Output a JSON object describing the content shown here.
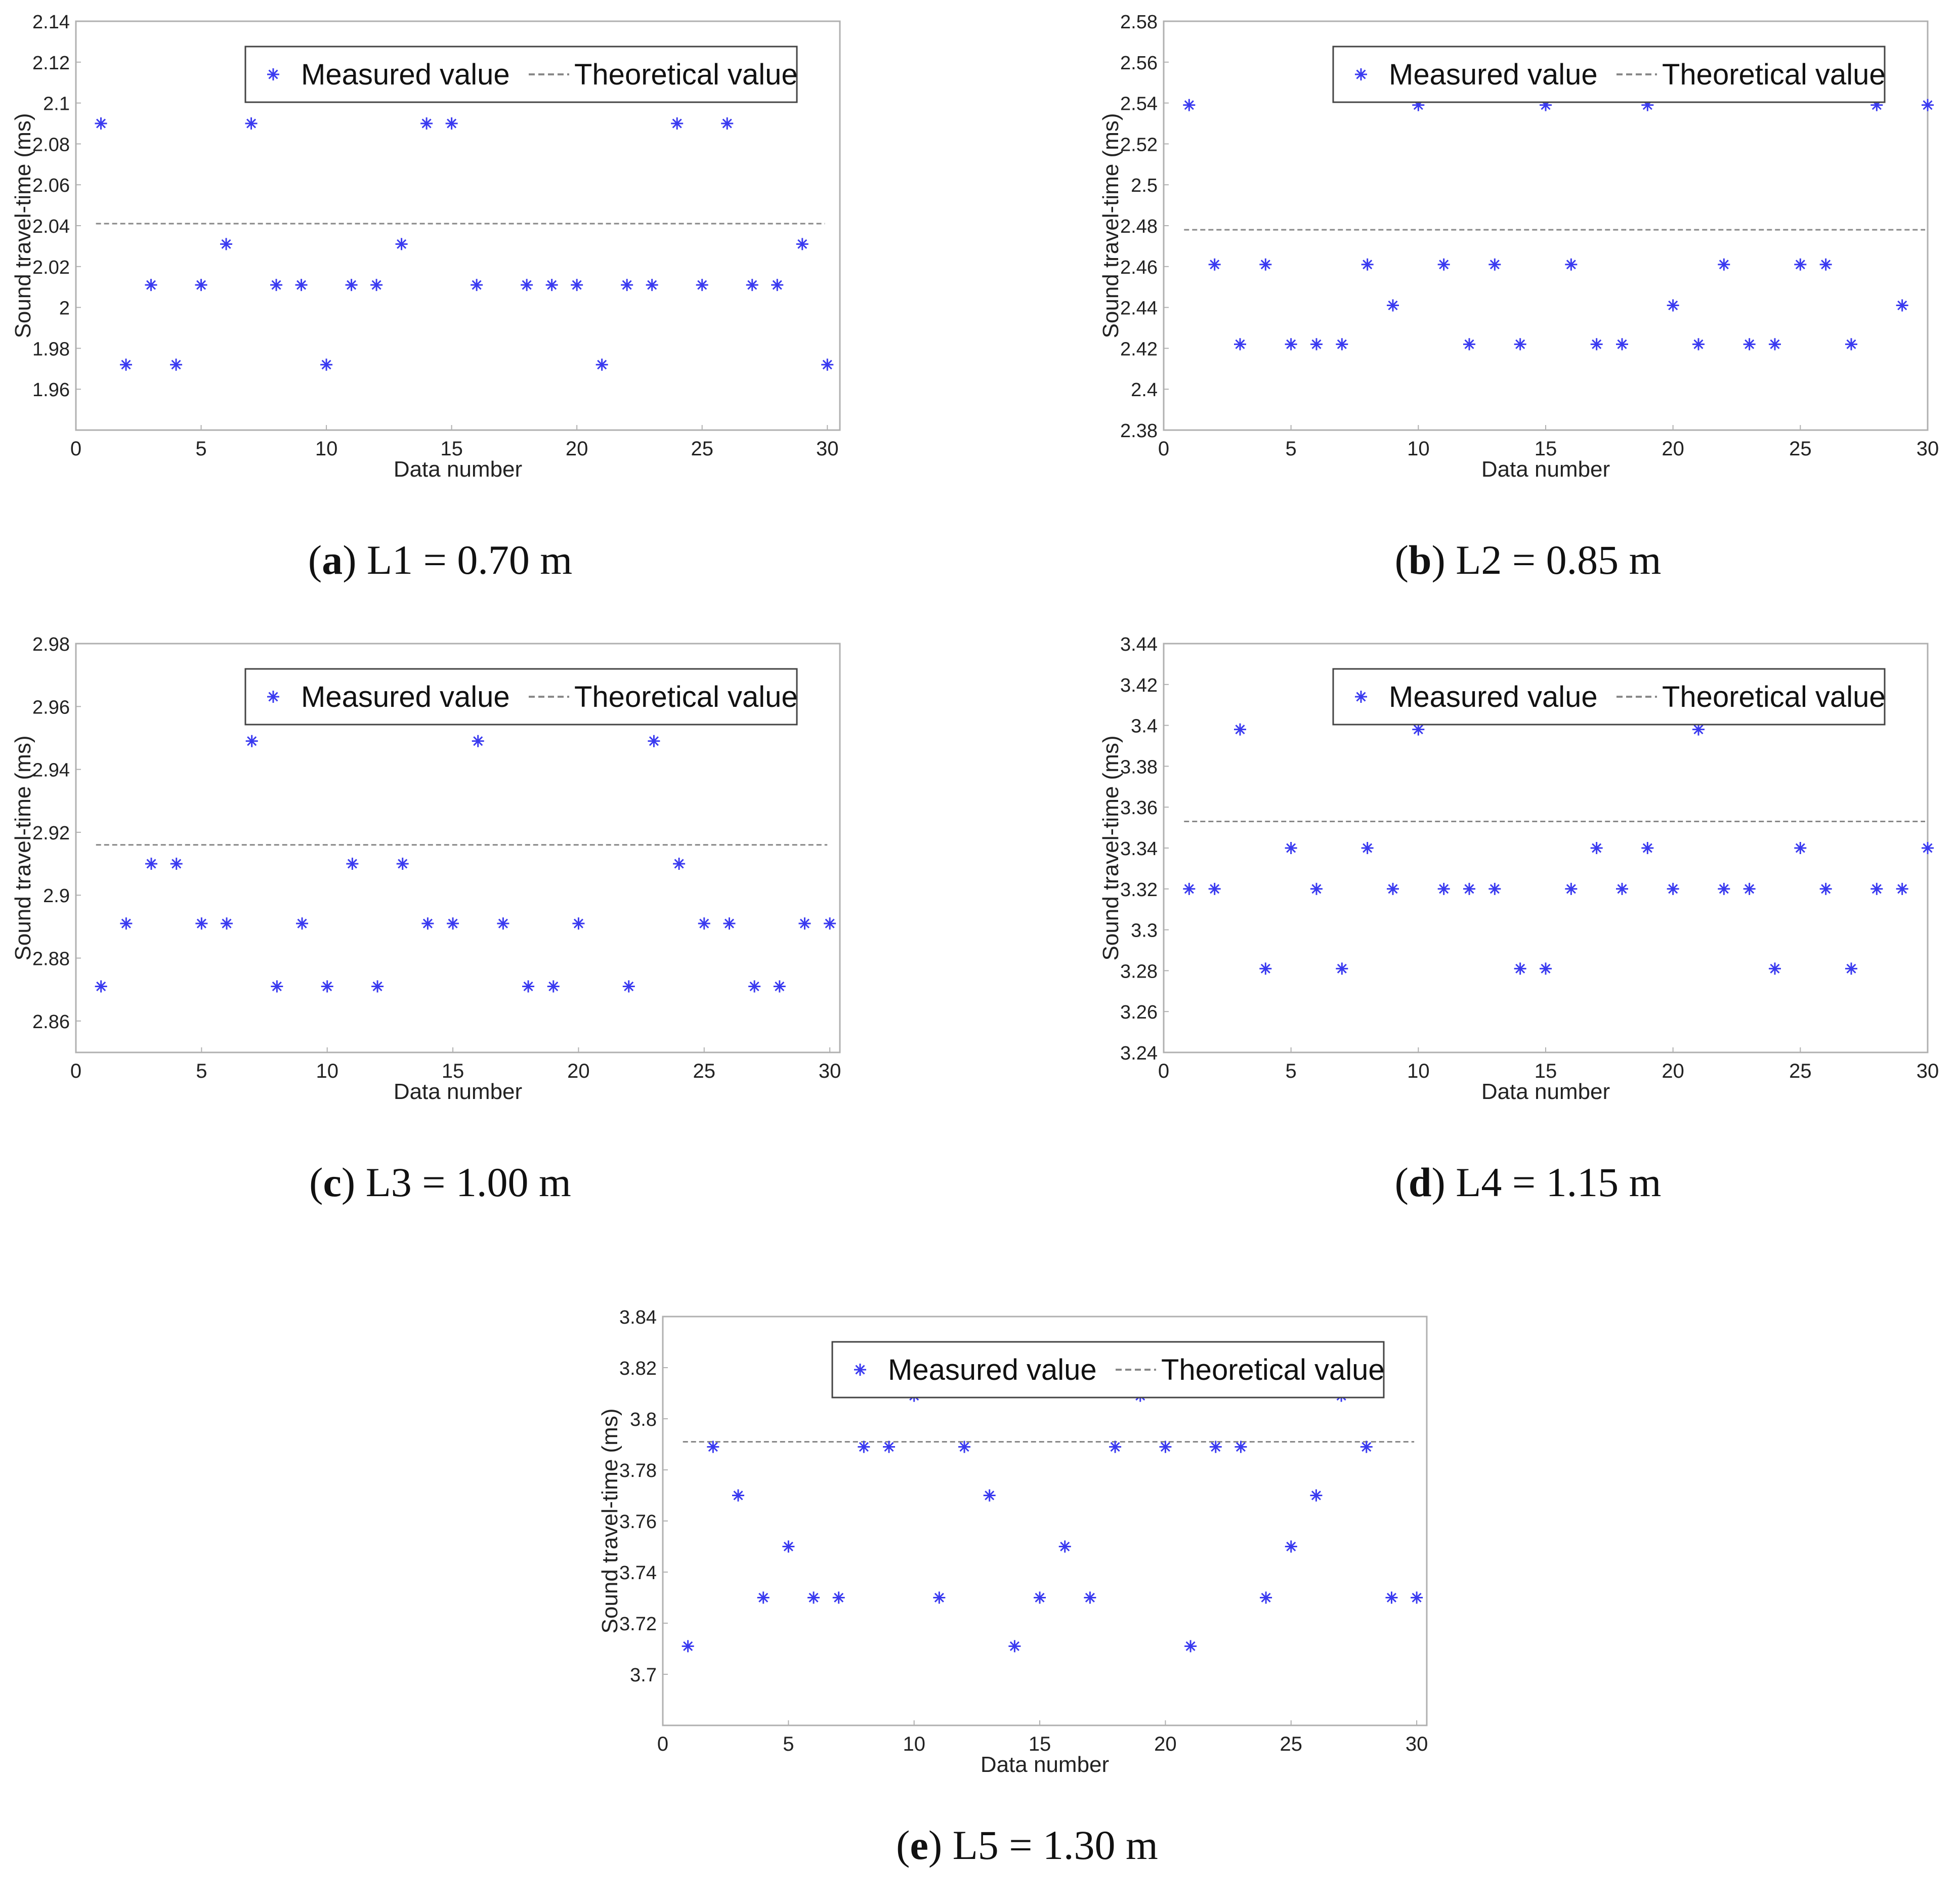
{
  "colors": {
    "measured": "#3a3af0",
    "theoretical": "#888888",
    "frame": "#b0b0b0",
    "legend_frame": "#444444"
  },
  "chart_data": [
    {
      "type": "scatter",
      "caption_letter": "a",
      "caption_text": "L1 = 0.70 m",
      "xlabel": "Data number",
      "ylabel": "Sound travel-time (ms)",
      "xlim": [
        0,
        30.5
      ],
      "ylim": [
        1.94,
        2.14
      ],
      "xticks": [
        0,
        5,
        10,
        15,
        20,
        25,
        30
      ],
      "yticks": [
        "1.96",
        "1.98",
        "2",
        "2.02",
        "2.04",
        "2.06",
        "2.08",
        "2.1",
        "2.12",
        "2.14"
      ],
      "legend": [
        "Measured value",
        "Theoretical value"
      ],
      "legend_position": "top-right",
      "theoretical_value": 2.041,
      "x": [
        1,
        2,
        3,
        4,
        5,
        6,
        7,
        8,
        9,
        10,
        11,
        12,
        13,
        14,
        15,
        16,
        17,
        18,
        19,
        20,
        21,
        22,
        23,
        24,
        25,
        26,
        27,
        28,
        29,
        30
      ],
      "values": [
        2.09,
        1.972,
        2.011,
        1.972,
        2.011,
        2.031,
        2.09,
        2.011,
        2.011,
        1.972,
        2.011,
        2.011,
        2.031,
        2.09,
        2.09,
        2.011,
        null,
        2.011,
        2.011,
        2.011,
        1.972,
        2.011,
        2.011,
        2.09,
        2.011,
        2.09,
        2.011,
        2.011,
        2.031,
        1.972
      ]
    },
    {
      "type": "scatter",
      "caption_letter": "b",
      "caption_text": "L2 = 0.85 m",
      "xlabel": "Data number",
      "ylabel": "Sound travel-time (ms)",
      "xlim": [
        0,
        30
      ],
      "ylim": [
        2.38,
        2.58
      ],
      "xticks": [
        0,
        5,
        10,
        15,
        20,
        25,
        30
      ],
      "yticks": [
        "2.38",
        "2.4",
        "2.42",
        "2.44",
        "2.46",
        "2.48",
        "2.5",
        "2.52",
        "2.54",
        "2.56",
        "2.58"
      ],
      "legend": [
        "Measured value",
        "Theoretical value"
      ],
      "legend_position": "top-right",
      "theoretical_value": 2.478,
      "x": [
        1,
        2,
        3,
        4,
        5,
        6,
        7,
        8,
        9,
        10,
        11,
        12,
        13,
        14,
        15,
        16,
        17,
        18,
        19,
        20,
        21,
        22,
        23,
        24,
        25,
        26,
        27,
        28,
        29,
        30
      ],
      "values": [
        2.539,
        2.461,
        2.422,
        2.461,
        2.422,
        2.422,
        2.422,
        2.461,
        2.441,
        2.539,
        2.461,
        2.422,
        2.461,
        2.422,
        2.539,
        2.461,
        2.422,
        2.422,
        2.539,
        2.441,
        2.422,
        2.461,
        2.422,
        2.422,
        2.461,
        2.461,
        2.422,
        2.539,
        2.441,
        2.539
      ]
    },
    {
      "type": "scatter",
      "caption_letter": "c",
      "caption_text": "L3 = 1.00 m",
      "xlabel": "Data number",
      "ylabel": "Sound travel-time (ms)",
      "xlim": [
        0,
        30.4
      ],
      "ylim": [
        2.85,
        2.98
      ],
      "xticks": [
        0,
        5,
        10,
        15,
        20,
        25,
        30
      ],
      "yticks": [
        "2.86",
        "2.88",
        "2.9",
        "2.92",
        "2.94",
        "2.96",
        "2.98"
      ],
      "legend": [
        "Measured value",
        "Theoretical value"
      ],
      "legend_position": "top-right",
      "theoretical_value": 2.916,
      "x": [
        1,
        2,
        3,
        4,
        5,
        6,
        7,
        8,
        9,
        10,
        11,
        12,
        13,
        14,
        15,
        16,
        17,
        18,
        19,
        20,
        21,
        22,
        23,
        24,
        25,
        26,
        27,
        28,
        29,
        30
      ],
      "values": [
        2.871,
        2.891,
        2.91,
        2.91,
        2.891,
        2.891,
        2.949,
        2.871,
        2.891,
        2.871,
        2.91,
        2.871,
        2.91,
        2.891,
        2.891,
        2.949,
        2.891,
        2.871,
        2.871,
        2.891,
        null,
        2.871,
        2.949,
        2.91,
        2.891,
        2.891,
        2.871,
        2.871,
        2.891,
        2.891
      ]
    },
    {
      "type": "scatter",
      "caption_letter": "d",
      "caption_text": "L4 = 1.15 m",
      "xlabel": "Data number",
      "ylabel": "Sound travel-time (ms)",
      "xlim": [
        0,
        30
      ],
      "ylim": [
        3.24,
        3.44
      ],
      "xticks": [
        0,
        5,
        10,
        15,
        20,
        25,
        30
      ],
      "yticks": [
        "3.24",
        "3.26",
        "3.28",
        "3.3",
        "3.32",
        "3.34",
        "3.36",
        "3.38",
        "3.4",
        "3.42",
        "3.44"
      ],
      "legend": [
        "Measured value",
        "Theoretical value"
      ],
      "legend_position": "top-right",
      "theoretical_value": 3.353,
      "x": [
        1,
        2,
        3,
        4,
        5,
        6,
        7,
        8,
        9,
        10,
        11,
        12,
        13,
        14,
        15,
        16,
        17,
        18,
        19,
        20,
        21,
        22,
        23,
        24,
        25,
        26,
        27,
        28,
        29,
        30
      ],
      "values": [
        3.32,
        3.32,
        3.398,
        3.281,
        3.34,
        3.32,
        3.281,
        3.34,
        3.32,
        3.398,
        3.32,
        3.32,
        3.32,
        3.281,
        3.281,
        3.32,
        3.34,
        3.32,
        3.34,
        3.32,
        3.398,
        3.32,
        3.32,
        3.281,
        3.34,
        3.32,
        3.281,
        3.32,
        3.32,
        3.34
      ]
    },
    {
      "type": "scatter",
      "caption_letter": "e",
      "caption_text": "L5 = 1.30 m",
      "xlabel": "Data number",
      "ylabel": "Sound travel-time (ms)",
      "xlim": [
        0,
        30.4
      ],
      "ylim": [
        3.68,
        3.84
      ],
      "xticks": [
        0,
        5,
        10,
        15,
        20,
        25,
        30
      ],
      "yticks": [
        "3.7",
        "3.72",
        "3.74",
        "3.76",
        "3.78",
        "3.8",
        "3.82",
        "3.84"
      ],
      "legend": [
        "Measured value",
        "Theoretical value"
      ],
      "legend_position": "top-right",
      "theoretical_value": 3.791,
      "x": [
        1,
        2,
        3,
        4,
        5,
        6,
        7,
        8,
        9,
        10,
        11,
        12,
        13,
        14,
        15,
        16,
        17,
        18,
        19,
        20,
        21,
        22,
        23,
        24,
        25,
        26,
        27,
        28,
        29,
        30
      ],
      "values": [
        3.711,
        3.789,
        3.77,
        3.73,
        3.75,
        3.73,
        3.73,
        3.789,
        3.789,
        3.809,
        3.73,
        3.789,
        3.77,
        3.711,
        3.73,
        3.75,
        3.73,
        3.789,
        3.809,
        3.789,
        3.711,
        3.789,
        3.789,
        3.73,
        3.75,
        3.77,
        3.809,
        3.789,
        3.73,
        3.73
      ]
    }
  ]
}
